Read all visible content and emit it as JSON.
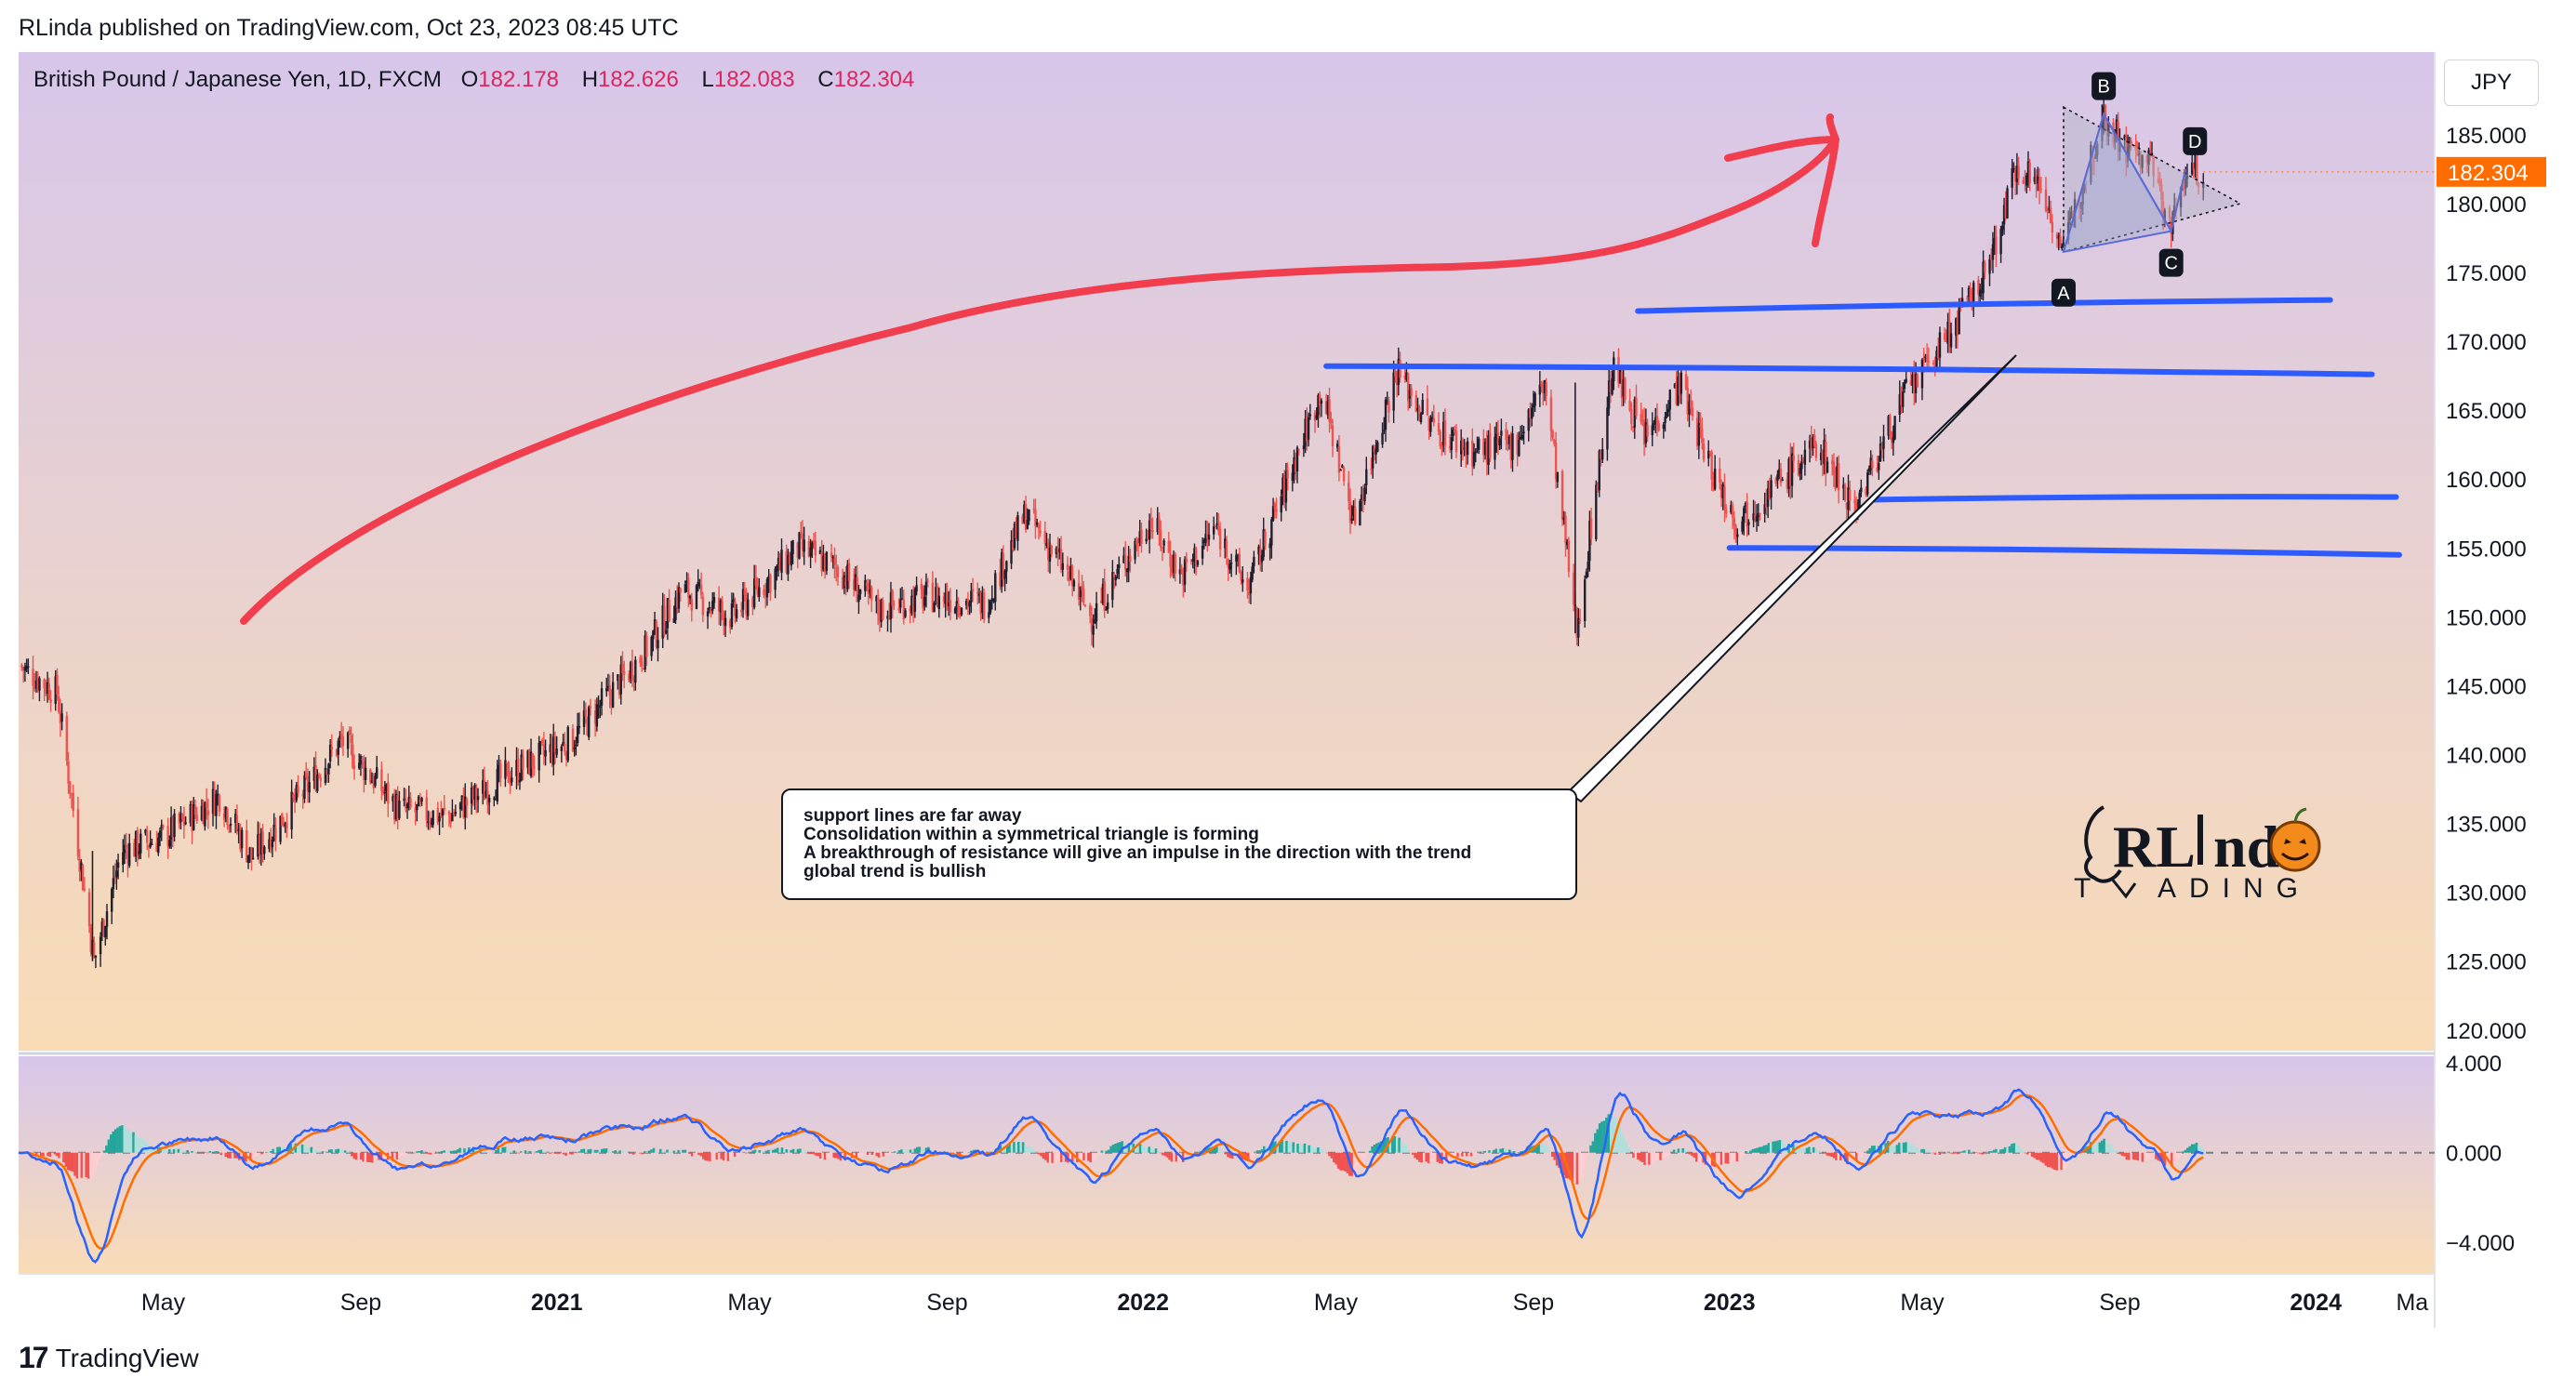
{
  "header": {
    "published": "RLinda published on TradingView.com, Oct 23, 2023 08:45 UTC"
  },
  "symbol_bar": {
    "name": "British Pound / Japanese Yen, 1D, FXCM",
    "o_label": "O",
    "o": "182.178",
    "h_label": "H",
    "h": "182.626",
    "l_label": "L",
    "l": "182.083",
    "c_label": "C",
    "c": "182.304"
  },
  "currency_button": "JPY",
  "price_tag": "182.304",
  "note": {
    "lines": [
      "support lines are far away",
      "Consolidation within a symmetrical triangle is forming",
      "A breakthrough of resistance will give an impulse in the direction with the trend",
      "global trend is bullish"
    ]
  },
  "pattern_labels": [
    "A",
    "B",
    "C",
    "D"
  ],
  "logo": {
    "line1_a": "RL",
    "line1_b": "nd",
    "line2_a": "T",
    "line2_b": "ADING"
  },
  "footer": {
    "brand": "TradingView"
  },
  "colors": {
    "bg_top": "#d7c6ea",
    "bg_bottom": "#f9dcb6",
    "candle_up": "#26a69a",
    "candle_down": "#ef5350",
    "candle_dark": "#1f1f2e",
    "annotation_red": "#f03e4f",
    "support_blue": "#2e5bff",
    "macd_line": "#2962ff",
    "signal_line": "#ff6d00",
    "price_tag_bg": "#ff6d00"
  },
  "chart_data": [
    {
      "type": "candlestick",
      "title": "British Pound / Japanese Yen, 1D, FXCM",
      "y_ticks": [
        185,
        180,
        175,
        170,
        165,
        160,
        155,
        150,
        145,
        140,
        135,
        130,
        125,
        120
      ],
      "y_tick_labels": [
        "185.000",
        "180.000",
        "175.000",
        "170.000",
        "165.000",
        "160.000",
        "155.000",
        "150.000",
        "145.000",
        "140.000",
        "135.000",
        "130.000",
        "125.000",
        "120.000"
      ],
      "x_tick_labels": [
        "May",
        "Sep",
        "2021",
        "May",
        "Sep",
        "2022",
        "May",
        "Sep",
        "2023",
        "May",
        "Sep",
        "2024",
        "Ma"
      ],
      "x_tick_bold": [
        false,
        false,
        true,
        false,
        false,
        true,
        false,
        false,
        true,
        false,
        false,
        true,
        false
      ],
      "x_tick_dates": [
        "2020-05-01",
        "2020-09-01",
        "2021-01-01",
        "2021-05-01",
        "2021-09-01",
        "2022-01-01",
        "2022-05-01",
        "2022-09-01",
        "2023-01-01",
        "2023-05-01",
        "2023-09-01",
        "2024-01-01",
        "2024-03-01"
      ],
      "x_range": [
        "2020-02-01",
        "2024-03-15"
      ],
      "ylim": [
        118.5,
        191
      ],
      "key_points": [
        {
          "date": "2020-02-01",
          "price": 146.5
        },
        {
          "date": "2020-02-25",
          "price": 144.5
        },
        {
          "date": "2020-03-19",
          "price": 125
        },
        {
          "date": "2020-04-05",
          "price": 133
        },
        {
          "date": "2020-05-01",
          "price": 134
        },
        {
          "date": "2020-06-05",
          "price": 137
        },
        {
          "date": "2020-06-25",
          "price": 132.5
        },
        {
          "date": "2020-08-01",
          "price": 138
        },
        {
          "date": "2020-08-20",
          "price": 141
        },
        {
          "date": "2020-09-25",
          "price": 136
        },
        {
          "date": "2020-10-25",
          "price": 135.5
        },
        {
          "date": "2020-12-01",
          "price": 138.5
        },
        {
          "date": "2021-01-10",
          "price": 141
        },
        {
          "date": "2021-02-25",
          "price": 147.5
        },
        {
          "date": "2021-03-20",
          "price": 152
        },
        {
          "date": "2021-04-20",
          "price": 150
        },
        {
          "date": "2021-06-01",
          "price": 155
        },
        {
          "date": "2021-06-25",
          "price": 153.5
        },
        {
          "date": "2021-07-20",
          "price": 150.5
        },
        {
          "date": "2021-08-20",
          "price": 151.5
        },
        {
          "date": "2021-09-25",
          "price": 151
        },
        {
          "date": "2021-10-20",
          "price": 157.5
        },
        {
          "date": "2021-11-10",
          "price": 154
        },
        {
          "date": "2021-11-30",
          "price": 150
        },
        {
          "date": "2022-01-05",
          "price": 157
        },
        {
          "date": "2022-01-25",
          "price": 153
        },
        {
          "date": "2022-02-15",
          "price": 156.5
        },
        {
          "date": "2022-03-07",
          "price": 152
        },
        {
          "date": "2022-04-01",
          "price": 160
        },
        {
          "date": "2022-04-22",
          "price": 166.5
        },
        {
          "date": "2022-05-12",
          "price": 157
        },
        {
          "date": "2022-06-08",
          "price": 168
        },
        {
          "date": "2022-06-28",
          "price": 164
        },
        {
          "date": "2022-07-25",
          "price": 162
        },
        {
          "date": "2022-08-20",
          "price": 162.5
        },
        {
          "date": "2022-09-08",
          "price": 167
        },
        {
          "date": "2022-09-28",
          "price": 149
        },
        {
          "date": "2022-10-20",
          "price": 168
        },
        {
          "date": "2022-11-10",
          "price": 163
        },
        {
          "date": "2022-12-01",
          "price": 167
        },
        {
          "date": "2022-12-20",
          "price": 161
        },
        {
          "date": "2023-01-05",
          "price": 157
        },
        {
          "date": "2023-01-25",
          "price": 159
        },
        {
          "date": "2023-02-25",
          "price": 162.5
        },
        {
          "date": "2023-03-20",
          "price": 158
        },
        {
          "date": "2023-04-20",
          "price": 166
        },
        {
          "date": "2023-05-15",
          "price": 170
        },
        {
          "date": "2023-06-10",
          "price": 175
        },
        {
          "date": "2023-06-30",
          "price": 183
        },
        {
          "date": "2023-07-15",
          "price": 181
        },
        {
          "date": "2023-07-28",
          "price": 176.5
        },
        {
          "date": "2023-08-10",
          "price": 182
        },
        {
          "date": "2023-08-22",
          "price": 186.5
        },
        {
          "date": "2023-09-05",
          "price": 184
        },
        {
          "date": "2023-09-20",
          "price": 183
        },
        {
          "date": "2023-10-03",
          "price": 178
        },
        {
          "date": "2023-10-12",
          "price": 182.5
        },
        {
          "date": "2023-10-23",
          "price": 182.3
        }
      ],
      "last_close": 182.304,
      "support_lines": [
        {
          "from": "2022-11-05",
          "to": "2024-01-10",
          "price_start": 172.2,
          "price_end": 173
        },
        {
          "from": "2022-04-25",
          "to": "2024-02-05",
          "price_start": 168.2,
          "price_end": 167.6
        },
        {
          "from": "2023-04-01",
          "to": "2024-02-20",
          "price_start": 158.5,
          "price_end": 158.7
        },
        {
          "from": "2023-01-01",
          "to": "2024-02-22",
          "price_start": 155,
          "price_end": 154.5
        }
      ],
      "triangle": {
        "upper": [
          {
            "date": "2023-07-28",
            "price": 187
          },
          {
            "date": "2023-11-15",
            "price": 180
          }
        ],
        "lower": [
          {
            "date": "2023-07-28",
            "price": 176.5
          },
          {
            "date": "2023-11-15",
            "price": 180
          }
        ]
      },
      "abcd": [
        {
          "label": "A",
          "date": "2023-07-28",
          "price": 176.5
        },
        {
          "label": "B",
          "date": "2023-08-22",
          "price": 186.5
        },
        {
          "label": "C",
          "date": "2023-10-03",
          "price": 178
        },
        {
          "label": "D",
          "date": "2023-10-12",
          "price": 182.5
        }
      ]
    },
    {
      "type": "macd",
      "y_ticks": [
        4,
        0,
        -4
      ],
      "y_tick_labels": [
        "4.000",
        "0.000",
        "−4.000"
      ],
      "ylim": [
        -5.4,
        4.3
      ],
      "series": [
        {
          "name": "MACD",
          "color": "#2962ff"
        },
        {
          "name": "Signal",
          "color": "#ff6d00"
        },
        {
          "name": "Histogram",
          "color": "#26a69a"
        }
      ]
    }
  ]
}
